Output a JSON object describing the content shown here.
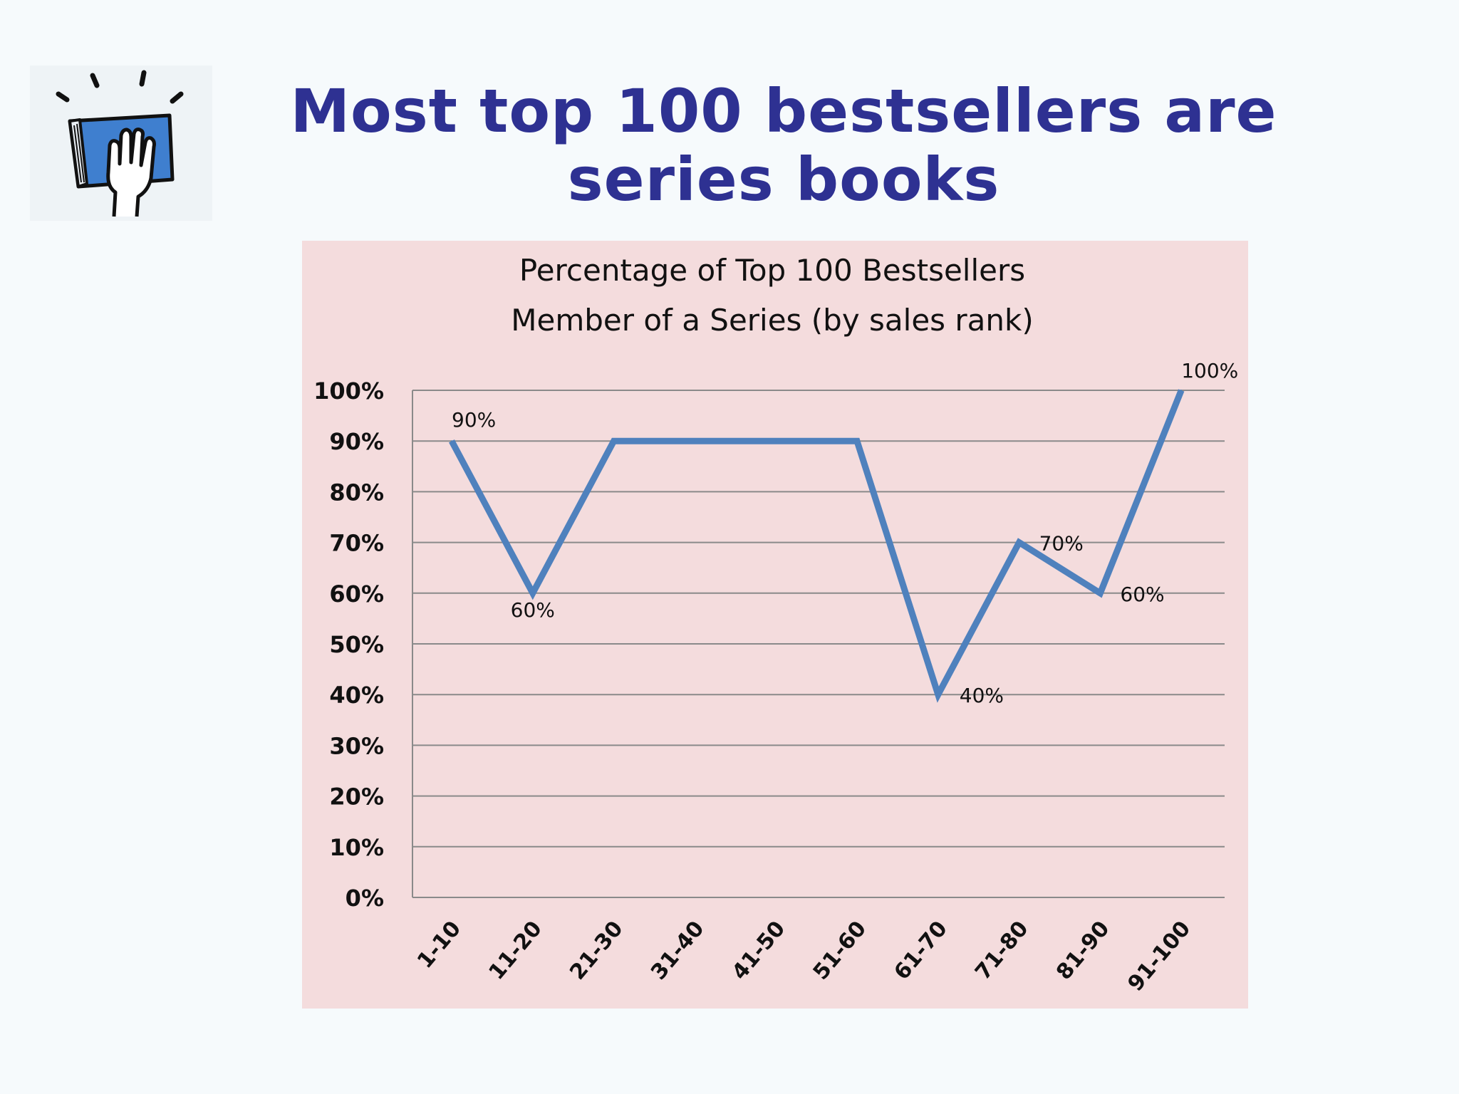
{
  "slide": {
    "title_line1": "Most top 100 bestsellers are",
    "title_line2": "series books"
  },
  "icon": "book-hand-icon",
  "colors": {
    "title": "#2e3192",
    "panel_background": "#f4dcdd",
    "series_line": "#4f81bd",
    "gridline": "#8a8a8a",
    "icon_book": "#3f7fcf"
  },
  "chart_data": {
    "type": "line",
    "title": "Percentage of Top 100 Bestsellers",
    "subtitle": "Member of a Series (by sales rank)",
    "categories": [
      "1-10",
      "11-20",
      "21-30",
      "31-40",
      "41-50",
      "51-60",
      "61-70",
      "71-80",
      "81-90",
      "91-100"
    ],
    "series": [
      {
        "values": [
          90,
          60,
          90,
          90,
          90,
          90,
          40,
          70,
          60,
          100
        ]
      }
    ],
    "data_labels": [
      {
        "index": 0,
        "text": "90%"
      },
      {
        "index": 1,
        "text": "60%"
      },
      {
        "index": 6,
        "text": "40%"
      },
      {
        "index": 7,
        "text": "70%"
      },
      {
        "index": 8,
        "text": "60%"
      },
      {
        "index": 9,
        "text": "100%"
      }
    ],
    "y_ticks": [
      "0%",
      "10%",
      "20%",
      "30%",
      "40%",
      "50%",
      "60%",
      "70%",
      "80%",
      "90%",
      "100%"
    ],
    "ylim": [
      0,
      100
    ],
    "grid": true,
    "legend": "none"
  }
}
